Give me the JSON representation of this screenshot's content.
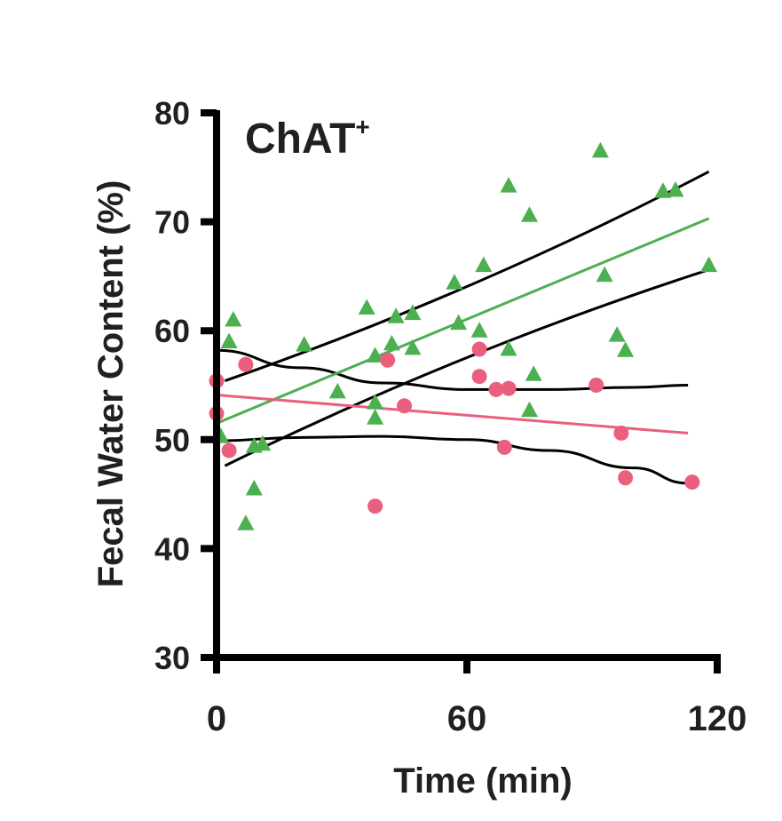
{
  "chart_data": {
    "type": "scatter",
    "title": "ChAT",
    "title_superscript": "+",
    "xlabel": "Time (min)",
    "ylabel": "Fecal Water Content (%)",
    "xlim": [
      0,
      120
    ],
    "ylim": [
      30,
      80
    ],
    "x_ticks": [
      "0",
      "60",
      "120"
    ],
    "y_ticks": [
      "30",
      "40",
      "50",
      "60",
      "70",
      "80"
    ],
    "grid": false,
    "legend": "none",
    "colors": {
      "green": "#4caf50",
      "pink": "#e95f7d",
      "ci": "#000000"
    },
    "series": [
      {
        "color": "#4caf50",
        "marker": "triangle",
        "points": [
          [
            1,
            50.3
          ],
          [
            3,
            59.0
          ],
          [
            4,
            61.0
          ],
          [
            7,
            42.3
          ],
          [
            9,
            45.5
          ],
          [
            9,
            49.4
          ],
          [
            11,
            49.6
          ],
          [
            21,
            58.7
          ],
          [
            29,
            54.4
          ],
          [
            36,
            62.1
          ],
          [
            38,
            57.7
          ],
          [
            38,
            53.4
          ],
          [
            38,
            52.0
          ],
          [
            42,
            58.8
          ],
          [
            43,
            61.3
          ],
          [
            47,
            61.6
          ],
          [
            47,
            58.4
          ],
          [
            57,
            64.4
          ],
          [
            58,
            60.7
          ],
          [
            63,
            60.0
          ],
          [
            64,
            66.0
          ],
          [
            70,
            73.3
          ],
          [
            70,
            58.3
          ],
          [
            75,
            70.6
          ],
          [
            75,
            52.7
          ],
          [
            76,
            56.0
          ],
          [
            92,
            76.5
          ],
          [
            93,
            65.1
          ],
          [
            96,
            59.6
          ],
          [
            98,
            58.2
          ],
          [
            107,
            72.8
          ],
          [
            110,
            72.9
          ],
          [
            118,
            66.0
          ]
        ]
      },
      {
        "color": "#e95f7d",
        "marker": "circle",
        "points": [
          [
            0,
            55.4
          ],
          [
            0,
            52.4
          ],
          [
            3,
            49.0
          ],
          [
            7,
            56.9
          ],
          [
            38,
            43.9
          ],
          [
            41,
            57.3
          ],
          [
            45,
            53.1
          ],
          [
            63,
            58.3
          ],
          [
            63,
            55.8
          ],
          [
            67,
            54.6
          ],
          [
            70,
            54.7
          ],
          [
            69,
            49.3
          ],
          [
            91,
            55.0
          ],
          [
            97,
            50.6
          ],
          [
            98,
            46.5
          ],
          [
            114,
            46.1
          ]
        ]
      }
    ],
    "fit_lines": [
      {
        "color": "#4caf50",
        "x": [
          0,
          118
        ],
        "y": [
          51.5,
          70.3
        ]
      },
      {
        "color": "#e95f7d",
        "x": [
          0,
          113
        ],
        "y": [
          54.1,
          50.6
        ]
      }
    ],
    "confidence_bands": [
      {
        "color": "#000000",
        "x": [
          2,
          118
        ],
        "y": [
          55.4,
          74.6
        ],
        "curvature": 0.6
      },
      {
        "color": "#000000",
        "x": [
          2,
          118
        ],
        "y": [
          47.6,
          65.6
        ],
        "curvature": -0.6
      },
      {
        "color": "#000000",
        "x": [
          0,
          20,
          40,
          60,
          80,
          100,
          113
        ],
        "y": [
          58.2,
          56.6,
          55.2,
          54.6,
          54.6,
          54.8,
          55.0
        ]
      },
      {
        "color": "#000000",
        "x": [
          0,
          20,
          40,
          60,
          80,
          100,
          113
        ],
        "y": [
          49.9,
          50.2,
          50.3,
          50.0,
          49.0,
          47.4,
          46.0
        ]
      }
    ]
  }
}
